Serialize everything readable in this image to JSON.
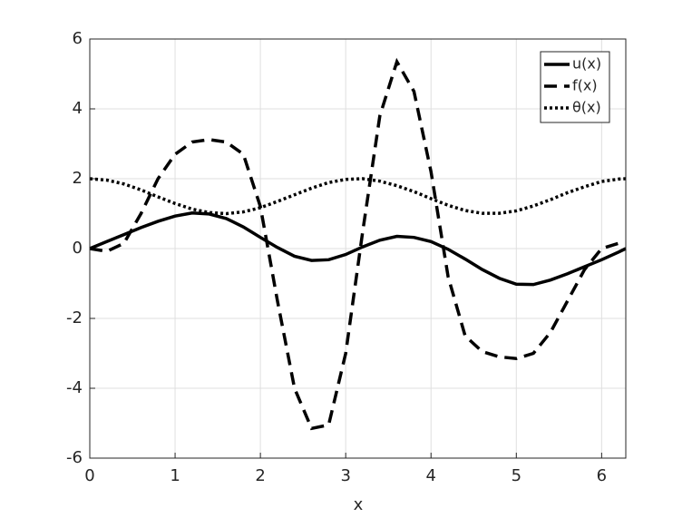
{
  "chart_data": {
    "type": "line",
    "xlabel": "x",
    "x": [
      0,
      0.2,
      0.4,
      0.6,
      0.8,
      1.0,
      1.2,
      1.4,
      1.6,
      1.8,
      2.0,
      2.2,
      2.4,
      2.6,
      2.8,
      3.0,
      3.2,
      3.4,
      3.6,
      3.8,
      4.0,
      4.2,
      4.4,
      4.6,
      4.8,
      5.0,
      5.2,
      5.4,
      5.6,
      5.8,
      6.0,
      6.2,
      6.2832
    ],
    "series": [
      {
        "name": "u(x)",
        "color": "#000000",
        "style": "solid",
        "values": [
          0,
          0.2,
          0.4,
          0.6,
          0.78,
          0.93,
          1.02,
          0.99,
          0.86,
          0.62,
          0.32,
          0.03,
          -0.22,
          -0.34,
          -0.32,
          -0.17,
          0.05,
          0.24,
          0.35,
          0.32,
          0.2,
          -0.02,
          -0.3,
          -0.6,
          -0.85,
          -1.02,
          -1.03,
          -0.9,
          -0.72,
          -0.52,
          -0.32,
          -0.1,
          0
        ]
      },
      {
        "name": "f(x)",
        "color": "#000000",
        "style": "dashed",
        "values": [
          0,
          -0.08,
          0.15,
          1.0,
          2.0,
          2.7,
          3.05,
          3.12,
          3.05,
          2.7,
          1.2,
          -1.5,
          -4.0,
          -5.15,
          -5.05,
          -3.0,
          0.5,
          3.8,
          5.35,
          4.5,
          2.2,
          -0.8,
          -2.5,
          -2.95,
          -3.1,
          -3.15,
          -3.0,
          -2.4,
          -1.5,
          -0.6,
          0.0,
          0.15,
          null
        ]
      },
      {
        "name": "θ(x)",
        "color": "#000000",
        "style": "dotted",
        "values": [
          2,
          1.96,
          1.85,
          1.68,
          1.48,
          1.29,
          1.13,
          1.03,
          1.0,
          1.05,
          1.17,
          1.35,
          1.54,
          1.73,
          1.89,
          1.98,
          2.0,
          1.93,
          1.8,
          1.63,
          1.43,
          1.24,
          1.09,
          1.01,
          1.01,
          1.08,
          1.22,
          1.4,
          1.6,
          1.77,
          1.92,
          1.99,
          2
        ]
      }
    ],
    "xlim": [
      0,
      6.2832
    ],
    "xticks": [
      0,
      1,
      2,
      3,
      4,
      5,
      6
    ],
    "ylim": [
      -6,
      6
    ],
    "yticks": [
      -6,
      -4,
      -2,
      0,
      2,
      4,
      6
    ],
    "grid": true,
    "legend": "top-right"
  }
}
